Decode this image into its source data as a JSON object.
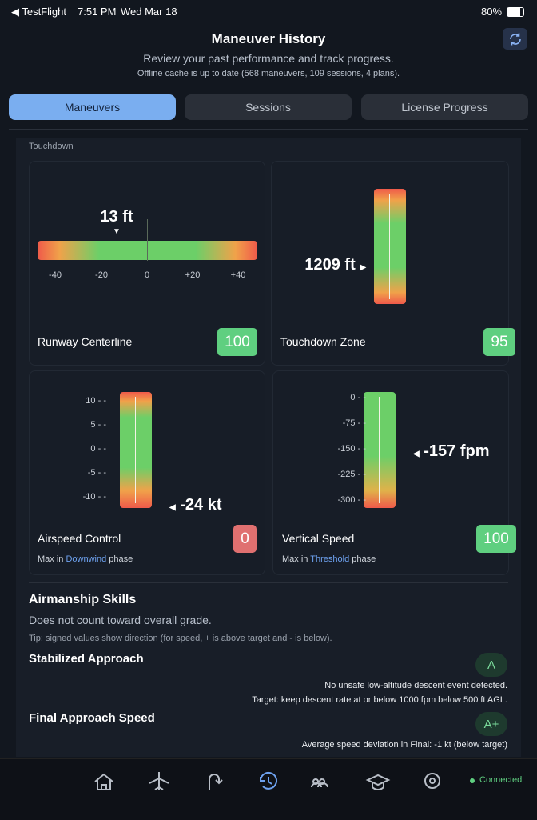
{
  "status": {
    "app": "◀ TestFlight",
    "time": "7:51 PM",
    "date": "Wed Mar 18",
    "battery": "80%"
  },
  "header": {
    "title": "Maneuver History",
    "subtitle": "Review your past performance and track progress.",
    "cache": "Offline cache is up to date (568 maneuvers, 109 sessions, 4 plans)."
  },
  "tabs": [
    "Maneuvers",
    "Sessions",
    "License Progress"
  ],
  "section_label": "Touchdown",
  "cards": [
    {
      "title": "Runway Centerline",
      "score": "100",
      "marker": "13 ft",
      "ticks": [
        "-40",
        "-20",
        "0",
        "+20",
        "+40"
      ]
    },
    {
      "title": "Touchdown Zone",
      "score": "95",
      "marker": "1209 ft"
    },
    {
      "title": "Airspeed Control",
      "score": "0",
      "marker": "-24 kt",
      "ticks": [
        "10",
        "5",
        "0",
        "-5",
        "-10"
      ],
      "note": "Max in",
      "phase": "Downwind",
      "note_end": "phase"
    },
    {
      "title": "Vertical Speed",
      "score": "100",
      "marker": "-157 fpm",
      "ticks": [
        "0",
        "-75",
        "-150",
        "-225",
        "-300"
      ],
      "note": "Max in",
      "phase": "Threshold",
      "note_end": "phase"
    }
  ],
  "airmanship": {
    "title": "Airmanship Skills",
    "subtitle": "Does not count toward overall grade.",
    "tip": "Tip: signed values show direction (for speed, + is above target and - is below).",
    "items": [
      {
        "name": "Stabilized Approach",
        "grade": "A",
        "lines": [
          "No unsafe low-altitude descent event detected.",
          "Target: keep descent rate at or below 1000 fpm below 500 ft AGL."
        ]
      },
      {
        "name": "Final Approach Speed",
        "grade": "A+",
        "lines": [
          "Average speed deviation in Final: -1 kt (below target)"
        ]
      }
    ]
  },
  "nav": {
    "connected": "Connected"
  }
}
